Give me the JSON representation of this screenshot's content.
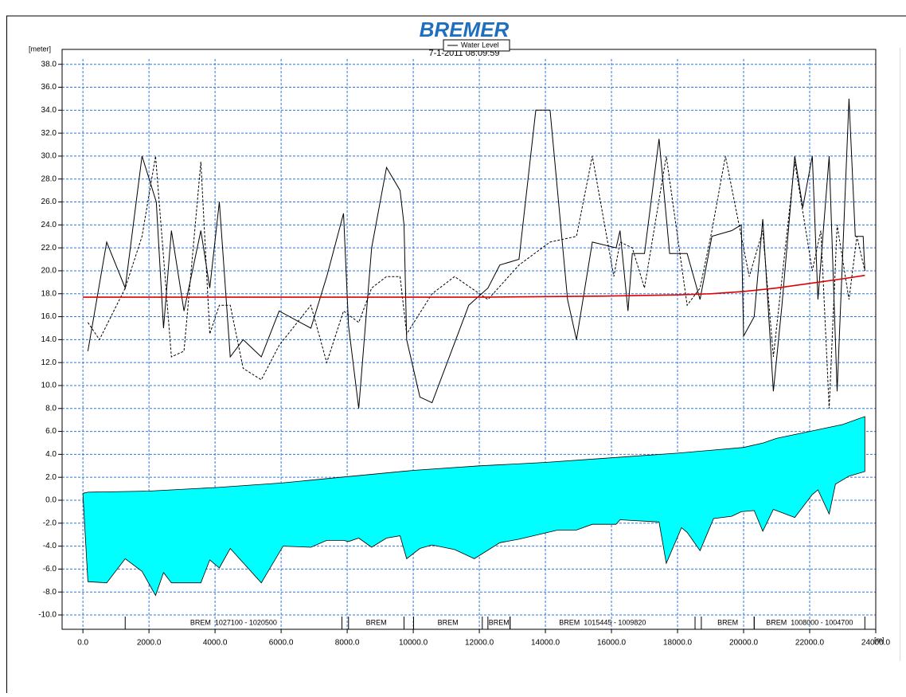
{
  "chart_data": {
    "type": "line",
    "title": "BREMER",
    "subtitle": "7-1-2011 08:09:59",
    "y_label": "[meter]",
    "x_label": "[m]",
    "xlim": [
      -630,
      24000
    ],
    "ylim": [
      -11.25,
      39.3
    ],
    "grid": true,
    "legend_position": "top",
    "xticks": [
      {
        "value": 0,
        "label": "0.0"
      },
      {
        "value": 2000,
        "label": "2000.0"
      },
      {
        "value": 4000,
        "label": "4000.0"
      },
      {
        "value": 6000,
        "label": "6000.0"
      },
      {
        "value": 8000,
        "label": "8000.0"
      },
      {
        "value": 10000,
        "label": "10000.0"
      },
      {
        "value": 12000,
        "label": "12000.0"
      },
      {
        "value": 14000,
        "label": "14000.0"
      },
      {
        "value": 16000,
        "label": "16000.0"
      },
      {
        "value": 18000,
        "label": "18000.0"
      },
      {
        "value": 20000,
        "label": "20000.0"
      },
      {
        "value": 22000,
        "label": "22000.0"
      },
      {
        "value": 24000,
        "label": "24000.0"
      }
    ],
    "yticks": [
      {
        "value": -10,
        "label": "-10.0"
      },
      {
        "value": -8,
        "label": "-8.0"
      },
      {
        "value": -6,
        "label": "-6.0"
      },
      {
        "value": -4,
        "label": "-4.0"
      },
      {
        "value": -2,
        "label": "-2.0"
      },
      {
        "value": 0,
        "label": "0.0"
      },
      {
        "value": 2,
        "label": "2.0"
      },
      {
        "value": 4,
        "label": "4.0"
      },
      {
        "value": 6,
        "label": "6.0"
      },
      {
        "value": 8,
        "label": "8.0"
      },
      {
        "value": 10,
        "label": "10.0"
      },
      {
        "value": 12,
        "label": "12.0"
      },
      {
        "value": 14,
        "label": "14.0"
      },
      {
        "value": 16,
        "label": "16.0"
      },
      {
        "value": 18,
        "label": "18.0"
      },
      {
        "value": 20,
        "label": "20.0"
      },
      {
        "value": 22,
        "label": "22.0"
      },
      {
        "value": 24,
        "label": "24.0"
      },
      {
        "value": 26,
        "label": "26.0"
      },
      {
        "value": 28,
        "label": "28.0"
      },
      {
        "value": 30,
        "label": "30.0"
      },
      {
        "value": 32,
        "label": "32.0"
      },
      {
        "value": 34,
        "label": "34.0"
      },
      {
        "value": 36,
        "label": "36.0"
      },
      {
        "value": 38,
        "label": "38.0"
      }
    ],
    "area": {
      "color": "#00ffff",
      "upper": {
        "x": [
          0,
          150,
          2000,
          4000,
          6000,
          7800,
          10000,
          12000,
          14000,
          16000,
          18000,
          20000,
          20600,
          21000,
          22000,
          23000,
          23670
        ],
        "values": [
          0.6,
          0.7,
          0.8,
          1.1,
          1.5,
          2.0,
          2.6,
          3.0,
          3.3,
          3.7,
          4.1,
          4.6,
          5.0,
          5.4,
          6.0,
          6.6,
          7.3
        ]
      },
      "lower": {
        "x": [
          150,
          720,
          1280,
          1790,
          2200,
          2440,
          2680,
          3570,
          3840,
          4130,
          4460,
          5400,
          6060,
          6900,
          7380,
          7890,
          8040,
          8350,
          8740,
          9190,
          9600,
          9800,
          10200,
          10570,
          11250,
          11850,
          12620,
          13200,
          14380,
          14940,
          15420,
          16140,
          16260,
          17440,
          17660,
          18120,
          18290,
          18680,
          19090,
          19640,
          19930,
          20320,
          20580,
          20900,
          21550,
          22080,
          22250,
          22590,
          22780,
          23190,
          23670
        ],
        "values": [
          -7.1,
          -7.2,
          -5.1,
          -6.2,
          -8.3,
          -6.3,
          -7.2,
          -7.2,
          -5.2,
          -5.9,
          -4.2,
          -7.2,
          -4.0,
          -4.1,
          -3.5,
          -3.5,
          -3.6,
          -3.3,
          -4.1,
          -3.3,
          -3.1,
          -5.1,
          -4.2,
          -3.9,
          -4.3,
          -5.1,
          -3.7,
          -3.4,
          -2.6,
          -2.6,
          -2.1,
          -2.1,
          -1.7,
          -1.9,
          -5.5,
          -2.4,
          -2.8,
          -4.4,
          -1.6,
          -1.4,
          -1.0,
          -0.9,
          -2.7,
          -0.8,
          -1.5,
          0.5,
          0.9,
          -1.2,
          1.4,
          2.1,
          2.5
        ]
      }
    },
    "series": [
      {
        "color": "#000000",
        "dash": false,
        "x": [
          150,
          720,
          1280,
          1790,
          2220,
          2440,
          2680,
          3060,
          3570,
          3840,
          4130,
          4460,
          4850,
          5400,
          5940,
          6900,
          7380,
          7890,
          8040,
          8350,
          8740,
          9190,
          9600,
          9720,
          9800,
          10200,
          10570,
          11680,
          12260,
          12620,
          13200,
          13710,
          14140,
          14670,
          14940,
          15420,
          16140,
          16260,
          16500,
          16630,
          17000,
          17440,
          17760,
          18290,
          18680,
          19040,
          19640,
          19930,
          20000,
          20320,
          20580,
          20900,
          21160,
          21550,
          21790,
          22080,
          22250,
          22590,
          22830,
          23190,
          23380,
          23620,
          23670
        ],
        "values": [
          13.0,
          22.5,
          18.5,
          30.0,
          26.0,
          15.0,
          23.5,
          16.5,
          23.5,
          18.5,
          26.0,
          12.5,
          14.0,
          12.5,
          16.5,
          15.0,
          19.5,
          25.0,
          15.2,
          8.0,
          22.0,
          29.0,
          27.0,
          24.0,
          14.0,
          9.0,
          8.5,
          17.0,
          18.5,
          20.5,
          21.0,
          34.0,
          34.0,
          17.5,
          14.0,
          22.5,
          22.0,
          23.5,
          16.5,
          21.5,
          21.5,
          31.5,
          21.5,
          21.5,
          17.5,
          23.0,
          23.5,
          24.0,
          14.3,
          16.0,
          24.5,
          9.5,
          17.0,
          30.0,
          25.5,
          30.0,
          17.5,
          30.0,
          9.5,
          35.0,
          23.0,
          23.0,
          20.0
        ]
      },
      {
        "color": "#000000",
        "dash": true,
        "x": [
          150,
          500,
          1280,
          1790,
          2200,
          2680,
          3060,
          3570,
          3840,
          4130,
          4460,
          4850,
          5400,
          5940,
          6900,
          7380,
          7890,
          8350,
          8740,
          9190,
          9600,
          9800,
          10570,
          11250,
          12260,
          13200,
          14140,
          14940,
          15420,
          16070,
          16260,
          16630,
          17000,
          17660,
          18290,
          18680,
          19040,
          19450,
          20170,
          20580,
          20900,
          21550,
          22080,
          22340,
          22590,
          22830,
          23190,
          23430,
          23670
        ],
        "values": [
          15.5,
          14.0,
          18.5,
          23.0,
          30.0,
          12.5,
          13.0,
          29.5,
          14.5,
          17.0,
          17.0,
          11.5,
          10.5,
          13.5,
          17.0,
          12.0,
          16.5,
          15.5,
          18.5,
          19.5,
          19.5,
          14.5,
          18.0,
          19.5,
          17.5,
          20.5,
          22.5,
          23.0,
          30.0,
          19.5,
          22.5,
          22.0,
          18.5,
          30.0,
          17.0,
          18.5,
          23.5,
          30.0,
          19.5,
          23.5,
          12.5,
          29.5,
          20.0,
          23.5,
          8.0,
          24.0,
          17.5,
          23.0,
          20.0
        ]
      },
      {
        "name": "Water Level",
        "color": "#e00000",
        "dash": false,
        "x": [
          0,
          4000,
          8000,
          12000,
          16000,
          18000,
          19000,
          20000,
          21000,
          22000,
          23000,
          23670
        ],
        "values": [
          17.7,
          17.7,
          17.7,
          17.7,
          17.8,
          17.9,
          18.0,
          18.2,
          18.5,
          18.9,
          19.3,
          19.6
        ]
      }
    ],
    "reaches": [
      {
        "label": "BREM  1027100 - 1020500",
        "start": 1280,
        "end": 7840
      },
      {
        "label": "BREM",
        "start": 8040,
        "end": 9720
      },
      {
        "label": "BREM",
        "start": 10010,
        "end": 12090
      },
      {
        "label": "BREM",
        "start": 12260,
        "end": 12930
      },
      {
        "label": "BREM  1015445 - 1009820",
        "start": 12930,
        "end": 18530
      },
      {
        "label": "BREM",
        "start": 18720,
        "end": 20320
      },
      {
        "label": "BREM  1008000 - 1004700",
        "start": 20320,
        "end": 23670
      }
    ]
  }
}
